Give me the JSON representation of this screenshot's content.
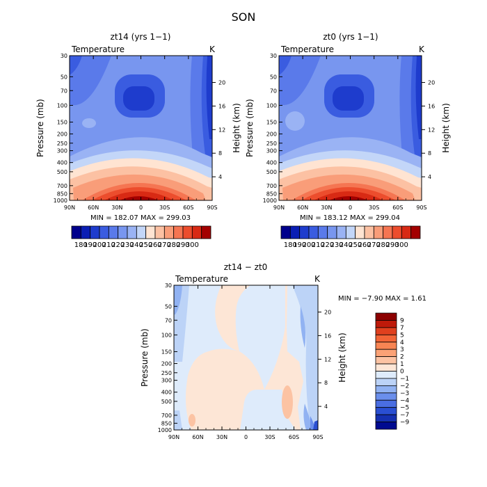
{
  "figure_title": "SON",
  "chart_data": [
    {
      "type": "heatmap",
      "title": "zt14 (yrs 1−1)",
      "subtitle_left": "Temperature",
      "subtitle_right": "K",
      "ylabel": "Pressure (mb)",
      "ylabel_right": "Height (km)",
      "x_ticks": [
        "90N",
        "60N",
        "30N",
        "0",
        "30S",
        "60S",
        "90S"
      ],
      "y_ticks": [
        "30",
        "50",
        "70",
        "100",
        "150",
        "200",
        "250",
        "300",
        "400",
        "500",
        "700",
        "850",
        "1000"
      ],
      "y_right_ticks": [
        "20",
        "16",
        "12",
        "8",
        "4"
      ],
      "min_max_text": "MIN = 182.07   MAX = 299.03",
      "colorbar_labels": [
        "180",
        "190",
        "200",
        "210",
        "220",
        "230",
        "240",
        "250",
        "260",
        "270",
        "280",
        "290",
        "300"
      ],
      "colors": [
        "#00008c",
        "#0a1eb4",
        "#1e3ccd",
        "#3a5ce0",
        "#5a7aea",
        "#7896ef",
        "#9ab3f4",
        "#c3d6f8",
        "#ffe4d2",
        "#fcc1a3",
        "#f99d79",
        "#f57552",
        "#ec4d2d",
        "#d82a14",
        "#a30000"
      ]
    },
    {
      "type": "heatmap",
      "title": "zt0 (yrs 1−1)",
      "subtitle_left": "Temperature",
      "subtitle_right": "K",
      "ylabel": "Pressure (mb)",
      "ylabel_right": "Height (km)",
      "x_ticks": [
        "90N",
        "60N",
        "30N",
        "0",
        "30S",
        "60S",
        "90S"
      ],
      "y_ticks": [
        "30",
        "50",
        "70",
        "100",
        "150",
        "200",
        "250",
        "300",
        "400",
        "500",
        "700",
        "850",
        "1000"
      ],
      "y_right_ticks": [
        "20",
        "16",
        "12",
        "8",
        "4"
      ],
      "min_max_text": "MIN = 183.12   MAX = 299.04",
      "colorbar_labels": [
        "180",
        "190",
        "200",
        "210",
        "220",
        "230",
        "240",
        "250",
        "260",
        "270",
        "280",
        "290",
        "300"
      ],
      "colors": [
        "#00008c",
        "#0a1eb4",
        "#1e3ccd",
        "#3a5ce0",
        "#5a7aea",
        "#7896ef",
        "#9ab3f4",
        "#c3d6f8",
        "#ffe4d2",
        "#fcc1a3",
        "#f99d79",
        "#f57552",
        "#ec4d2d",
        "#d82a14",
        "#a30000"
      ]
    },
    {
      "type": "heatmap",
      "title": "zt14 − zt0",
      "subtitle_left": "Temperature",
      "subtitle_right": "K",
      "ylabel": "Pressure (mb)",
      "ylabel_right": "Height (km)",
      "x_ticks": [
        "90N",
        "60N",
        "30N",
        "0",
        "30S",
        "60S",
        "90S"
      ],
      "y_ticks": [
        "30",
        "50",
        "70",
        "100",
        "150",
        "200",
        "250",
        "300",
        "400",
        "500",
        "700",
        "850",
        "1000"
      ],
      "y_right_ticks": [
        "20",
        "16",
        "12",
        "8",
        "4"
      ],
      "min_max_text": "MIN =  −7.90   MAX =   1.61",
      "colorbar_labels": [
        "9",
        "7",
        "5",
        "4",
        "3",
        "2",
        "1",
        "0",
        "−1",
        "−2",
        "−3",
        "−4",
        "−5",
        "−7",
        "−9"
      ],
      "colors": [
        "#8c0000",
        "#be1a0a",
        "#e0401e",
        "#f26436",
        "#f88553",
        "#fba276",
        "#fcc3a3",
        "#fde6d6",
        "#deebfb",
        "#bcd3f7",
        "#91b2f2",
        "#6b8fec",
        "#4a6ee2",
        "#2a4fd2",
        "#1530b0",
        "#000a90"
      ]
    }
  ]
}
